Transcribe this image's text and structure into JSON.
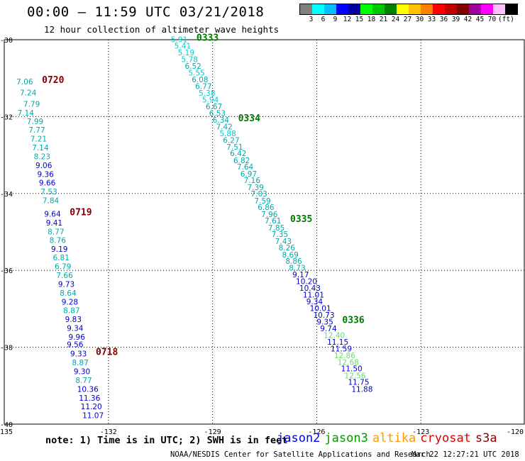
{
  "header": {
    "title": "00:00 — 11:59 UTC 03/21/2018",
    "subtitle": "12 hour collection of altimeter wave heights"
  },
  "legend": {
    "colors": [
      "#808080",
      "#00ffff",
      "#00c0ff",
      "#0000ff",
      "#0000a0",
      "#00ff00",
      "#00c800",
      "#008000",
      "#ffff00",
      "#ffc000",
      "#ff8000",
      "#ff0000",
      "#c00000",
      "#800000",
      "#a000a0",
      "#ff00ff",
      "#ffc0ff",
      "#000000"
    ],
    "labels": [
      "3",
      "6",
      "9",
      "12",
      "15",
      "18",
      "21",
      "24",
      "27",
      "30",
      "33",
      "36",
      "39",
      "42",
      "45",
      "70",
      "(ft)"
    ]
  },
  "axes": {
    "lon_ticks": [
      "-135",
      "-132",
      "-129",
      "-126",
      "-123",
      "-120"
    ],
    "lat_ticks": [
      "-30",
      "-32",
      "-34",
      "-36",
      "-38",
      "-40"
    ]
  },
  "tracks": [
    {
      "pass": "0720",
      "pass_color": "#800000",
      "points": [
        {
          "lon": -134.65,
          "lat": -31.16,
          "v": "7.06",
          "c": "#00aaaa"
        },
        {
          "lon": -134.55,
          "lat": -31.45,
          "v": "7.24",
          "c": "#00aaaa"
        },
        {
          "lon": -134.45,
          "lat": -31.74,
          "v": "7.79",
          "c": "#00aaaa"
        },
        {
          "lon": -134.62,
          "lat": -31.97,
          "v": "7.14",
          "c": "#00aaaa"
        },
        {
          "lon": -134.35,
          "lat": -32.2,
          "v": "7.99",
          "c": "#00aaaa"
        },
        {
          "lon": -134.3,
          "lat": -32.42,
          "v": "7.77",
          "c": "#00aaaa"
        },
        {
          "lon": -134.25,
          "lat": -32.65,
          "v": "7.21",
          "c": "#00aaaa"
        },
        {
          "lon": -134.2,
          "lat": -32.88,
          "v": "7.14",
          "c": "#00aaaa"
        },
        {
          "lon": -134.15,
          "lat": -33.11,
          "v": "8.23",
          "c": "#00aaaa"
        },
        {
          "lon": -134.1,
          "lat": -33.34,
          "v": "9.06",
          "c": "#0000cc"
        },
        {
          "lon": -134.05,
          "lat": -33.57,
          "v": "9.36",
          "c": "#0000cc"
        },
        {
          "lon": -134.0,
          "lat": -33.79,
          "v": "9.66",
          "c": "#0000cc"
        },
        {
          "lon": -133.95,
          "lat": -34.02,
          "v": "7.53",
          "c": "#00aaaa"
        },
        {
          "lon": -133.9,
          "lat": -34.25,
          "v": "7.84",
          "c": "#00aaaa"
        }
      ]
    },
    {
      "pass": "0719",
      "pass_color": "#800000",
      "points": [
        {
          "lon": -133.85,
          "lat": -34.6,
          "v": "9.64",
          "c": "#0000cc"
        },
        {
          "lon": -133.8,
          "lat": -34.83,
          "v": "9.41",
          "c": "#0000cc"
        },
        {
          "lon": -133.75,
          "lat": -35.06,
          "v": "8.77",
          "c": "#00aaaa"
        },
        {
          "lon": -133.7,
          "lat": -35.29,
          "v": "8.76",
          "c": "#00aaaa"
        },
        {
          "lon": -133.65,
          "lat": -35.52,
          "v": "9.19",
          "c": "#0000cc"
        },
        {
          "lon": -133.6,
          "lat": -35.74,
          "v": "6.81",
          "c": "#00aaaa"
        },
        {
          "lon": -133.55,
          "lat": -35.97,
          "v": "6.79",
          "c": "#00aaaa"
        },
        {
          "lon": -133.5,
          "lat": -36.2,
          "v": "7.66",
          "c": "#00aaaa"
        },
        {
          "lon": -133.45,
          "lat": -36.43,
          "v": "9.73",
          "c": "#0000cc"
        },
        {
          "lon": -133.4,
          "lat": -36.66,
          "v": "8.64",
          "c": "#00aaaa"
        },
        {
          "lon": -133.35,
          "lat": -36.89,
          "v": "9.28",
          "c": "#0000cc"
        },
        {
          "lon": -133.3,
          "lat": -37.11,
          "v": "8.87",
          "c": "#00aaaa"
        },
        {
          "lon": -133.25,
          "lat": -37.34,
          "v": "9.83",
          "c": "#0000cc"
        },
        {
          "lon": -133.2,
          "lat": -37.57,
          "v": "9.34",
          "c": "#0000cc"
        },
        {
          "lon": -133.15,
          "lat": -37.8,
          "v": "9.96",
          "c": "#0000cc"
        },
        {
          "lon": -133.2,
          "lat": -38.0,
          "v": "9.56",
          "c": "#0000cc"
        }
      ]
    },
    {
      "pass": "0718",
      "pass_color": "#800000",
      "points": [
        {
          "lon": -133.1,
          "lat": -38.24,
          "v": "9.33",
          "c": "#0000cc"
        },
        {
          "lon": -133.05,
          "lat": -38.47,
          "v": "8.87",
          "c": "#00aaaa"
        },
        {
          "lon": -133.0,
          "lat": -38.7,
          "v": "9.30",
          "c": "#0000cc"
        },
        {
          "lon": -132.95,
          "lat": -38.93,
          "v": "8.77",
          "c": "#00aaaa"
        },
        {
          "lon": -132.9,
          "lat": -39.16,
          "v": "10.36",
          "c": "#0000cc"
        },
        {
          "lon": -132.85,
          "lat": -39.39,
          "v": "11.36",
          "c": "#0000cc"
        },
        {
          "lon": -132.8,
          "lat": -39.61,
          "v": "11.20",
          "c": "#0000cc"
        },
        {
          "lon": -132.75,
          "lat": -39.84,
          "v": "11.07",
          "c": "#0000cc"
        }
      ]
    },
    {
      "pass": "0333",
      "pass_color": "#007700",
      "points": [
        {
          "lon": -130.2,
          "lat": -30.06,
          "v": "5.91",
          "c": "#00cccc"
        },
        {
          "lon": -130.1,
          "lat": -30.23,
          "v": "5.41",
          "c": "#00cccc"
        },
        {
          "lon": -130.0,
          "lat": -30.41,
          "v": "5.19",
          "c": "#00cccc"
        },
        {
          "lon": -129.9,
          "lat": -30.58,
          "v": "5.78",
          "c": "#00cccc"
        },
        {
          "lon": -129.8,
          "lat": -30.76,
          "v": "6.52",
          "c": "#00aaaa"
        },
        {
          "lon": -129.7,
          "lat": -30.93,
          "v": "5.55",
          "c": "#00cccc"
        },
        {
          "lon": -129.6,
          "lat": -31.11,
          "v": "6.08",
          "c": "#00aaaa"
        },
        {
          "lon": -129.5,
          "lat": -31.28,
          "v": "6.77",
          "c": "#00aaaa"
        },
        {
          "lon": -129.4,
          "lat": -31.46,
          "v": "5.38",
          "c": "#00cccc"
        },
        {
          "lon": -129.3,
          "lat": -31.63,
          "v": "5.94",
          "c": "#00cccc"
        },
        {
          "lon": -129.2,
          "lat": -31.81,
          "v": "6.67",
          "c": "#00aaaa"
        },
        {
          "lon": -129.1,
          "lat": -31.98,
          "v": "6.53",
          "c": "#00aaaa"
        }
      ]
    },
    {
      "pass": "0334",
      "pass_color": "#007700",
      "points": [
        {
          "lon": -129.0,
          "lat": -32.16,
          "v": "6.34",
          "c": "#00aaaa"
        },
        {
          "lon": -128.9,
          "lat": -32.33,
          "v": "7.42",
          "c": "#00aaaa"
        },
        {
          "lon": -128.8,
          "lat": -32.51,
          "v": "5.88",
          "c": "#00cccc"
        },
        {
          "lon": -128.7,
          "lat": -32.68,
          "v": "6.27",
          "c": "#00aaaa"
        },
        {
          "lon": -128.6,
          "lat": -32.86,
          "v": "7.51",
          "c": "#00aaaa"
        },
        {
          "lon": -128.5,
          "lat": -33.03,
          "v": "6.42",
          "c": "#00aaaa"
        },
        {
          "lon": -128.4,
          "lat": -33.21,
          "v": "6.82",
          "c": "#00aaaa"
        },
        {
          "lon": -128.3,
          "lat": -33.38,
          "v": "7.64",
          "c": "#00aaaa"
        },
        {
          "lon": -128.2,
          "lat": -33.56,
          "v": "6.97",
          "c": "#00aaaa"
        },
        {
          "lon": -128.1,
          "lat": -33.73,
          "v": "7.16",
          "c": "#00aaaa"
        },
        {
          "lon": -128.0,
          "lat": -33.91,
          "v": "7.39",
          "c": "#00aaaa"
        },
        {
          "lon": -127.9,
          "lat": -34.08,
          "v": "7.03",
          "c": "#00aaaa"
        },
        {
          "lon": -127.8,
          "lat": -34.26,
          "v": "7.59",
          "c": "#00aaaa"
        },
        {
          "lon": -127.7,
          "lat": -34.43,
          "v": "6.86",
          "c": "#00aaaa"
        },
        {
          "lon": -127.6,
          "lat": -34.61,
          "v": "7.96",
          "c": "#00aaaa"
        }
      ]
    },
    {
      "pass": "0335",
      "pass_color": "#007700",
      "points": [
        {
          "lon": -127.5,
          "lat": -34.78,
          "v": "7.61",
          "c": "#00aaaa"
        },
        {
          "lon": -127.4,
          "lat": -34.96,
          "v": "7.85",
          "c": "#00aaaa"
        },
        {
          "lon": -127.3,
          "lat": -35.13,
          "v": "7.35",
          "c": "#00aaaa"
        },
        {
          "lon": -127.2,
          "lat": -35.31,
          "v": "7.43",
          "c": "#00aaaa"
        },
        {
          "lon": -127.1,
          "lat": -35.48,
          "v": "8.26",
          "c": "#00aaaa"
        },
        {
          "lon": -127.0,
          "lat": -35.66,
          "v": "8.69",
          "c": "#00aaaa"
        },
        {
          "lon": -126.9,
          "lat": -35.83,
          "v": "8.86",
          "c": "#00aaaa"
        },
        {
          "lon": -126.8,
          "lat": -36.01,
          "v": "8.73",
          "c": "#00aaaa"
        },
        {
          "lon": -126.7,
          "lat": -36.18,
          "v": "9.17",
          "c": "#0000cc"
        },
        {
          "lon": -126.6,
          "lat": -36.36,
          "v": "10.20",
          "c": "#0000cc"
        },
        {
          "lon": -126.5,
          "lat": -36.53,
          "v": "10.43",
          "c": "#0000cc"
        },
        {
          "lon": -126.4,
          "lat": -36.71,
          "v": "11.01",
          "c": "#0000cc"
        },
        {
          "lon": -126.3,
          "lat": -36.88,
          "v": "9.34",
          "c": "#0000cc"
        },
        {
          "lon": -126.2,
          "lat": -37.06,
          "v": "10.01",
          "c": "#0000cc"
        },
        {
          "lon": -126.1,
          "lat": -37.23,
          "v": "10.73",
          "c": "#0000cc"
        }
      ]
    },
    {
      "pass": "0336",
      "pass_color": "#007700",
      "points": [
        {
          "lon": -126.0,
          "lat": -37.41,
          "v": "9.35",
          "c": "#0000cc"
        },
        {
          "lon": -125.9,
          "lat": -37.58,
          "v": "9.74",
          "c": "#0000cc"
        },
        {
          "lon": -125.8,
          "lat": -37.76,
          "v": "12.40",
          "c": "#66dd66"
        },
        {
          "lon": -125.7,
          "lat": -37.93,
          "v": "11.15",
          "c": "#0000cc"
        },
        {
          "lon": -125.6,
          "lat": -38.11,
          "v": "11.59",
          "c": "#0000cc"
        },
        {
          "lon": -125.5,
          "lat": -38.28,
          "v": "12.86",
          "c": "#66dd66"
        },
        {
          "lon": -125.4,
          "lat": -38.46,
          "v": "12.68",
          "c": "#66dd66"
        },
        {
          "lon": -125.3,
          "lat": -38.63,
          "v": "11.50",
          "c": "#0000cc"
        },
        {
          "lon": -125.2,
          "lat": -38.81,
          "v": "12.56",
          "c": "#66dd66"
        },
        {
          "lon": -125.1,
          "lat": -38.98,
          "v": "11.75",
          "c": "#0000cc"
        },
        {
          "lon": -125.0,
          "lat": -39.16,
          "v": "11.88",
          "c": "#0000cc"
        }
      ]
    }
  ],
  "footer": {
    "note": "note: 1) Time is in UTC; 2) SWH is in feet",
    "satellites": [
      {
        "name": "jason2",
        "color": "#0000ee"
      },
      {
        "name": "jason3",
        "color": "#009900"
      },
      {
        "name": "altika",
        "color": "#ff9900"
      },
      {
        "name": "cryosat",
        "color": "#dd0000"
      },
      {
        "name": "s3a",
        "color": "#880000"
      }
    ],
    "credit": "NOAA/NESDIS Center for Satellite Applications and Research",
    "timestamp": "Mar 22 12:27:21 UTC 2018"
  }
}
